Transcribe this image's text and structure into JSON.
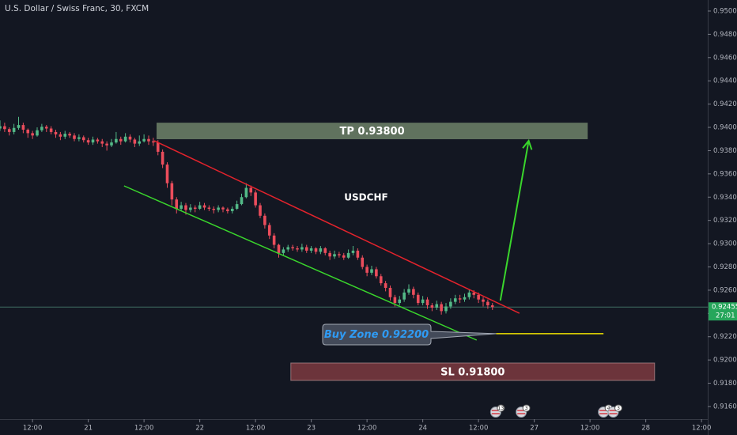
{
  "chart_data": {
    "type": "candlestick",
    "title": "U.S. Dollar / Swiss Franc, 30, FXCM",
    "x": [
      5,
      6,
      7,
      8,
      9,
      10,
      11,
      12,
      13,
      14,
      15,
      16,
      17,
      18,
      19,
      20,
      21,
      22,
      23,
      24,
      25,
      26,
      27,
      28,
      29,
      30,
      31,
      32,
      33,
      34,
      35,
      36,
      37,
      38,
      39,
      40,
      41,
      42,
      43,
      44,
      45,
      46,
      47,
      48,
      49,
      50,
      51,
      52,
      53,
      54,
      55,
      56,
      57,
      58,
      59,
      60,
      61,
      62,
      63,
      64,
      65,
      66,
      67,
      68,
      69,
      70,
      71,
      72,
      73,
      74,
      75,
      76,
      77,
      78,
      79,
      80,
      81,
      82,
      83,
      84,
      85,
      86,
      87,
      88,
      89,
      90,
      91,
      92,
      93,
      94,
      95,
      96,
      97,
      98,
      99,
      100,
      101,
      102,
      103,
      104,
      105,
      106,
      107,
      108,
      109,
      110,
      111
    ],
    "open": [
      0.9399,
      0.9401,
      0.93985,
      0.9396,
      0.93995,
      0.9402,
      0.9398,
      0.9395,
      0.9393,
      0.93975,
      0.94005,
      0.9399,
      0.9396,
      0.9394,
      0.9392,
      0.93945,
      0.9393,
      0.939,
      0.93915,
      0.9389,
      0.9387,
      0.93895,
      0.9388,
      0.9386,
      0.93845,
      0.9387,
      0.939,
      0.9388,
      0.9392,
      0.93895,
      0.9386,
      0.9388,
      0.939,
      0.9388,
      0.9387,
      0.9379,
      0.9368,
      0.9352,
      0.9338,
      0.933,
      0.9333,
      0.9329,
      0.9331,
      0.933,
      0.9333,
      0.9331,
      0.933,
      0.9329,
      0.9331,
      0.93295,
      0.9328,
      0.933,
      0.9334,
      0.934,
      0.9348,
      0.9344,
      0.9333,
      0.9324,
      0.9316,
      0.9307,
      0.9299,
      0.9292,
      0.9295,
      0.9297,
      0.9296,
      0.9295,
      0.9297,
      0.9294,
      0.9296,
      0.9293,
      0.9296,
      0.9292,
      0.9289,
      0.9291,
      0.929,
      0.9288,
      0.9292,
      0.9294,
      0.9288,
      0.928,
      0.9275,
      0.9278,
      0.9272,
      0.9266,
      0.9262,
      0.9254,
      0.9249,
      0.9252,
      0.9258,
      0.9261,
      0.9256,
      0.9249,
      0.9252,
      0.9247,
      0.9245,
      0.9248,
      0.9242,
      0.9246,
      0.925,
      0.9253,
      0.9252,
      0.9254,
      0.9258,
      0.9256,
      0.9252,
      0.925,
      0.9247
    ],
    "high": [
      0.9406,
      0.9404,
      0.94,
      0.9403,
      0.9409,
      0.9404,
      0.9399,
      0.9397,
      0.94,
      0.9403,
      0.9402,
      0.9401,
      0.9398,
      0.9396,
      0.9397,
      0.9396,
      0.9395,
      0.9394,
      0.9393,
      0.9391,
      0.9392,
      0.9391,
      0.939,
      0.9388,
      0.939,
      0.9396,
      0.9392,
      0.9395,
      0.9394,
      0.9391,
      0.9393,
      0.9394,
      0.9393,
      0.9391,
      0.9389,
      0.9381,
      0.937,
      0.9354,
      0.934,
      0.9336,
      0.9335,
      0.9334,
      0.9333,
      0.9336,
      0.9335,
      0.9333,
      0.9332,
      0.9333,
      0.9332,
      0.9331,
      0.9332,
      0.9337,
      0.9343,
      0.9352,
      0.935,
      0.9346,
      0.9335,
      0.9326,
      0.9318,
      0.9309,
      0.93,
      0.9297,
      0.9299,
      0.9299,
      0.9298,
      0.93,
      0.9299,
      0.9298,
      0.9297,
      0.9298,
      0.9297,
      0.9294,
      0.9294,
      0.9293,
      0.9292,
      0.9295,
      0.9298,
      0.9296,
      0.929,
      0.9282,
      0.9281,
      0.928,
      0.9274,
      0.9268,
      0.9264,
      0.9256,
      0.9255,
      0.9261,
      0.9265,
      0.9263,
      0.9258,
      0.9255,
      0.9254,
      0.9249,
      0.9251,
      0.925,
      0.9249,
      0.9253,
      0.9256,
      0.9256,
      0.9257,
      0.9261,
      0.926,
      0.9258,
      0.9254,
      0.9252,
      0.9249
    ],
    "low": [
      0.9397,
      0.9396,
      0.9393,
      0.9394,
      0.9398,
      0.9395,
      0.9391,
      0.939,
      0.9392,
      0.9396,
      0.9396,
      0.9394,
      0.9391,
      0.9389,
      0.939,
      0.9391,
      0.9388,
      0.9388,
      0.9387,
      0.9385,
      0.9385,
      0.9386,
      0.9383,
      0.938,
      0.9383,
      0.9386,
      0.9385,
      0.9387,
      0.9387,
      0.9383,
      0.9384,
      0.9387,
      0.9385,
      0.9384,
      0.9376,
      0.9365,
      0.9348,
      0.9333,
      0.9326,
      0.9328,
      0.9325,
      0.9327,
      0.9327,
      0.9329,
      0.9329,
      0.9328,
      0.9326,
      0.9327,
      0.9327,
      0.9326,
      0.9326,
      0.9329,
      0.9333,
      0.9339,
      0.9341,
      0.9331,
      0.9322,
      0.9313,
      0.9304,
      0.9296,
      0.9288,
      0.929,
      0.9293,
      0.9294,
      0.9293,
      0.9293,
      0.9292,
      0.9292,
      0.9291,
      0.9291,
      0.929,
      0.9286,
      0.9287,
      0.9288,
      0.9286,
      0.9287,
      0.929,
      0.9286,
      0.9278,
      0.9272,
      0.9273,
      0.927,
      0.9264,
      0.9259,
      0.9251,
      0.9246,
      0.9247,
      0.925,
      0.9256,
      0.9253,
      0.9247,
      0.9247,
      0.9244,
      0.9242,
      0.9243,
      0.9239,
      0.924,
      0.9244,
      0.9248,
      0.9249,
      0.925,
      0.9252,
      0.9253,
      0.9249,
      0.9246,
      0.9244,
      0.9243
    ],
    "close": [
      0.9401,
      0.93985,
      0.9396,
      0.93995,
      0.9402,
      0.9398,
      0.9395,
      0.9393,
      0.93975,
      0.94005,
      0.9399,
      0.9396,
      0.9394,
      0.9392,
      0.93945,
      0.9393,
      0.939,
      0.93915,
      0.9389,
      0.9387,
      0.93895,
      0.9388,
      0.9386,
      0.93845,
      0.9387,
      0.939,
      0.9388,
      0.9392,
      0.93895,
      0.9386,
      0.9388,
      0.939,
      0.9388,
      0.9387,
      0.9379,
      0.9368,
      0.9352,
      0.9338,
      0.933,
      0.9333,
      0.9329,
      0.9331,
      0.933,
      0.9333,
      0.9331,
      0.933,
      0.9329,
      0.9331,
      0.93295,
      0.9328,
      0.933,
      0.9334,
      0.934,
      0.9348,
      0.9344,
      0.9333,
      0.9324,
      0.9316,
      0.9307,
      0.9299,
      0.9292,
      0.9295,
      0.9297,
      0.9296,
      0.9295,
      0.9297,
      0.9294,
      0.9296,
      0.9293,
      0.9296,
      0.9292,
      0.9289,
      0.9291,
      0.929,
      0.9288,
      0.9292,
      0.9294,
      0.9288,
      0.928,
      0.9275,
      0.9278,
      0.9272,
      0.9266,
      0.9262,
      0.9254,
      0.9249,
      0.9252,
      0.9258,
      0.9261,
      0.9256,
      0.9249,
      0.9252,
      0.9247,
      0.9245,
      0.9248,
      0.9242,
      0.9246,
      0.925,
      0.9253,
      0.9252,
      0.9254,
      0.9258,
      0.9256,
      0.9252,
      0.925,
      0.9247,
      0.92455
    ],
    "up_color": "#53b987",
    "down_color": "#eb4d5c",
    "xlim": [
      5,
      157
    ],
    "ylim": [
      0.91491,
      0.95095
    ],
    "xticks": [
      {
        "value": 12,
        "label": "12:00"
      },
      {
        "value": 24,
        "label": "21"
      },
      {
        "value": 36,
        "label": "12:00"
      },
      {
        "value": 48,
        "label": "22"
      },
      {
        "value": 60,
        "label": "12:00"
      },
      {
        "value": 72,
        "label": "23"
      },
      {
        "value": 84,
        "label": "12:00"
      },
      {
        "value": 96,
        "label": "24"
      },
      {
        "value": 108,
        "label": "12:00"
      },
      {
        "value": 120,
        "label": "27"
      },
      {
        "value": 132,
        "label": "12:00"
      },
      {
        "value": 144,
        "label": "28"
      },
      {
        "value": 156,
        "label": "12:00"
      }
    ],
    "yticks": [
      {
        "value": 0.916,
        "label": "0.91600"
      },
      {
        "value": 0.918,
        "label": "0.91800"
      },
      {
        "value": 0.92,
        "label": "0.92000"
      },
      {
        "value": 0.922,
        "label": "0.92200"
      },
      {
        "value": 0.924,
        "label": "0.92400"
      },
      {
        "value": 0.926,
        "label": "0.92600"
      },
      {
        "value": 0.928,
        "label": "0.92800"
      },
      {
        "value": 0.93,
        "label": "0.93000"
      },
      {
        "value": 0.932,
        "label": "0.93200"
      },
      {
        "value": 0.934,
        "label": "0.93400"
      },
      {
        "value": 0.936,
        "label": "0.93600"
      },
      {
        "value": 0.938,
        "label": "0.93800"
      },
      {
        "value": 0.94,
        "label": "0.94000"
      },
      {
        "value": 0.942,
        "label": "0.94200"
      },
      {
        "value": 0.944,
        "label": "0.94400"
      },
      {
        "value": 0.946,
        "label": "0.94600"
      },
      {
        "value": 0.948,
        "label": "0.94800"
      },
      {
        "value": 0.95,
        "label": "0.95000"
      }
    ],
    "last_price": 0.92455,
    "countdown": "27:01",
    "last_price_color": "#26a65b",
    "symbol_label": "USDCHF",
    "zones": [
      {
        "label": "TP 0.93800",
        "x": [
          38.7,
          131.5
        ],
        "y": [
          0.93898,
          0.9404
        ],
        "color": "#6f8268"
      },
      {
        "label": "SL 0.91800",
        "x": [
          67.6,
          145.9
        ],
        "y": [
          0.91824,
          0.91974
        ],
        "color": "#7c3a40"
      }
    ],
    "lines": [
      {
        "x": [
          38.2,
          116.8
        ],
        "y": [
          0.93885,
          0.92402
        ],
        "color": "#e3232c"
      },
      {
        "x": [
          31.7,
          107.6
        ],
        "y": [
          0.93497,
          0.92171
        ],
        "color": "#3ad62c"
      },
      {
        "x": [
          111.8,
          134.9
        ],
        "y": [
          0.92226,
          0.92226
        ],
        "color": "#f0e100"
      }
    ],
    "arrow": {
      "x": [
        112.7,
        118.8
      ],
      "y": [
        0.92511,
        0.93885
      ],
      "color": "#3ad62c"
    },
    "callout": "Buy Zone 0.92200",
    "events": [
      {
        "x": 111.7,
        "label": "13"
      },
      {
        "x": 117.2,
        "label": "3"
      },
      {
        "x": 134.9,
        "label": "4"
      },
      {
        "x": 137,
        "label": "3"
      }
    ]
  }
}
